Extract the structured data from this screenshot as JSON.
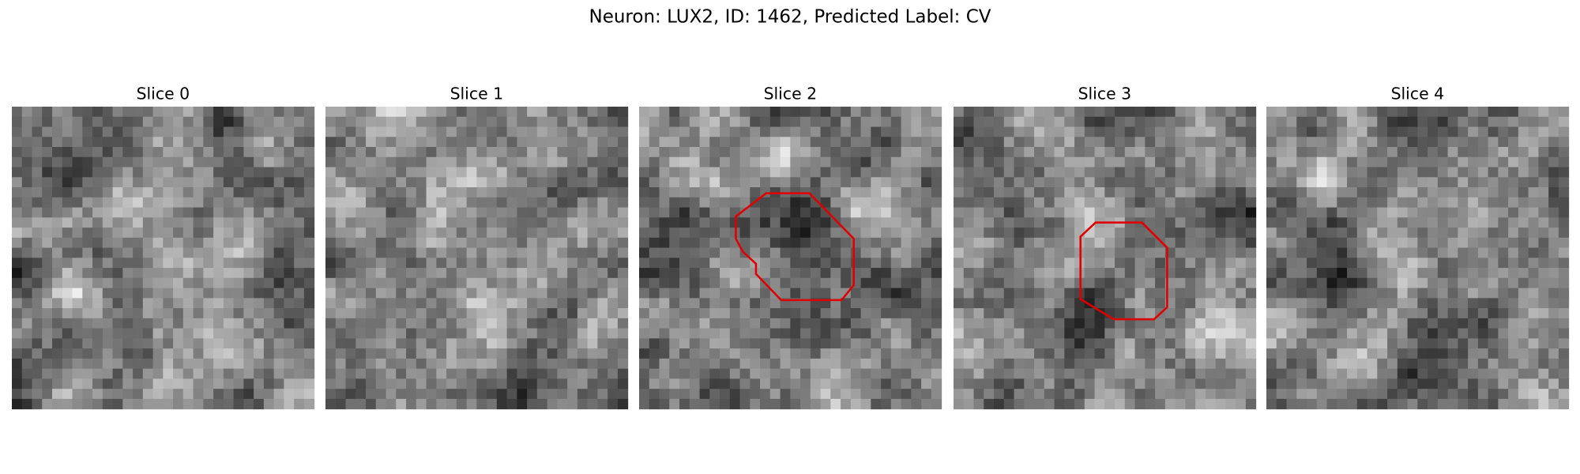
{
  "title": "Neuron: LUX2, ID: 1462, Predicted Label: CV",
  "panels": [
    {
      "title": "Slice 0"
    },
    {
      "title": "Slice 1"
    },
    {
      "title": "Slice 2"
    },
    {
      "title": "Slice 3"
    },
    {
      "title": "Slice 4"
    }
  ]
}
